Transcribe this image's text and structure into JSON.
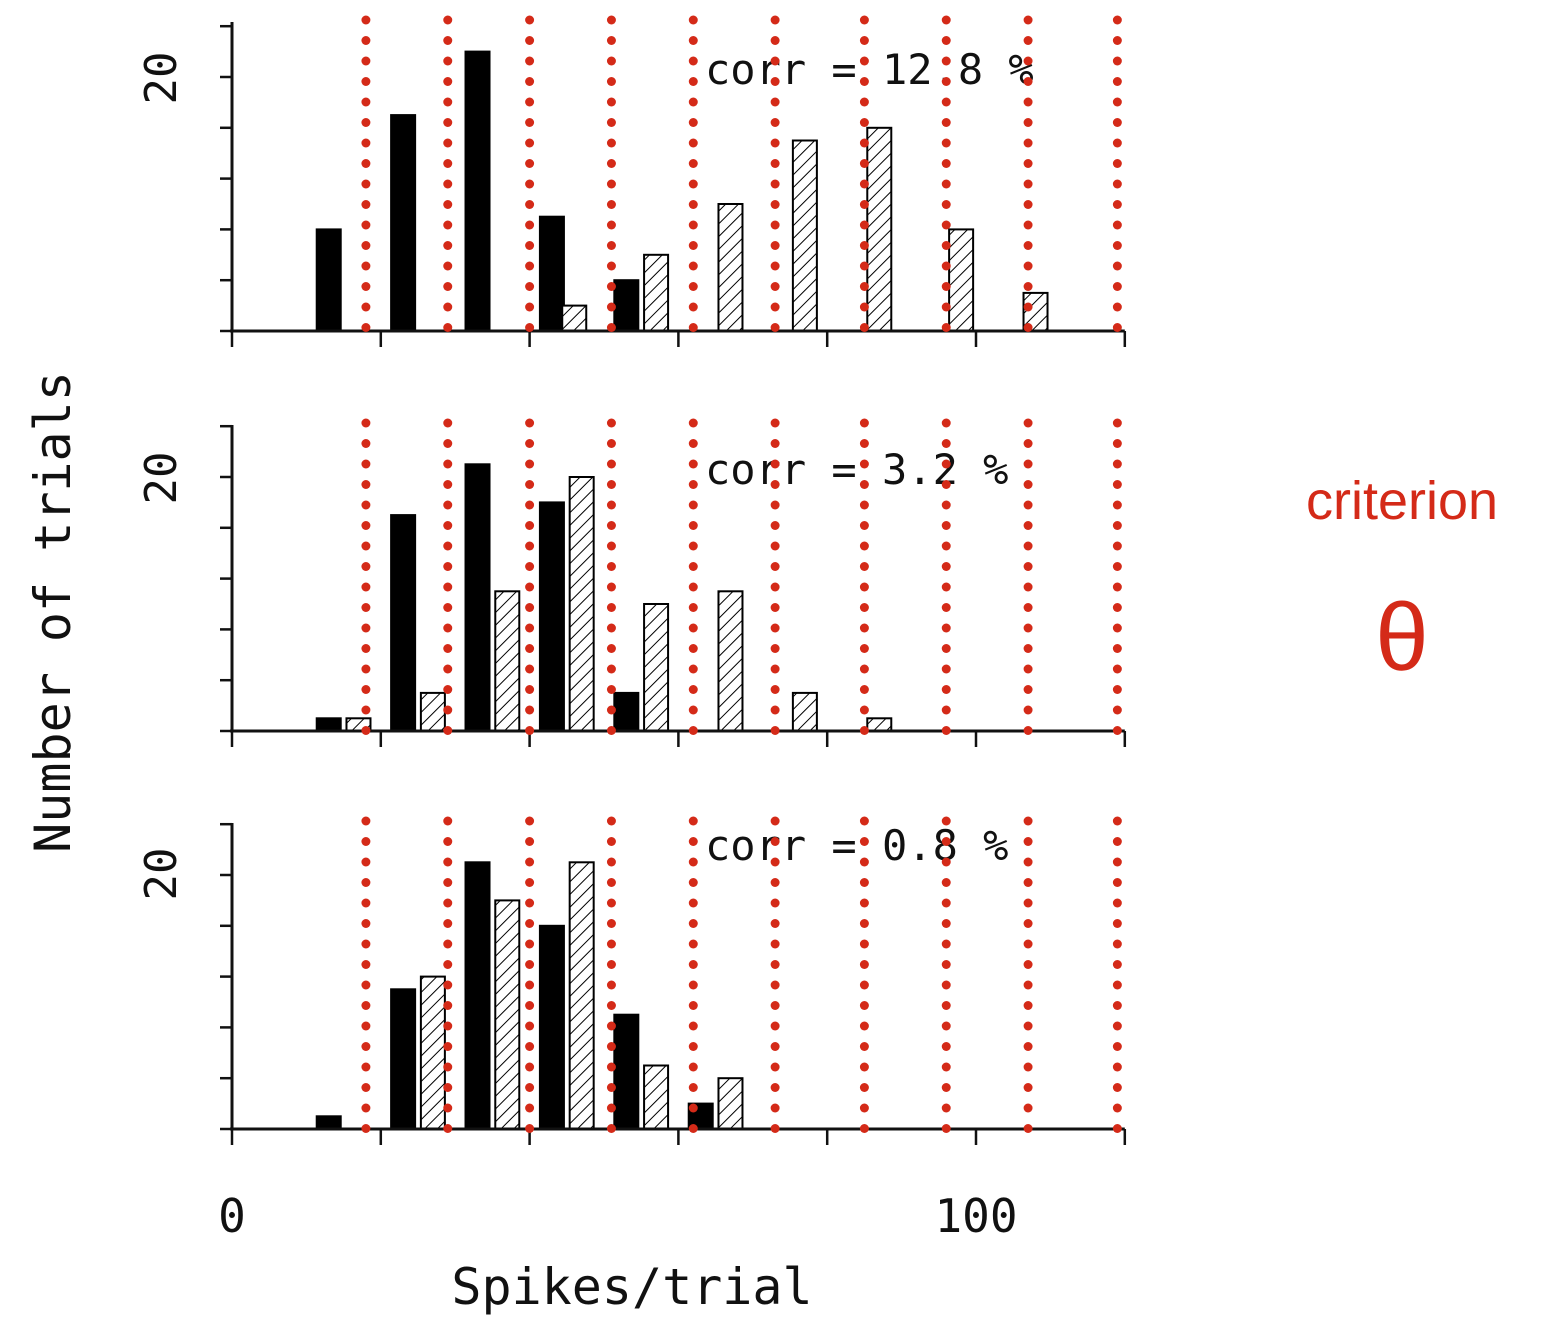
{
  "colors": {
    "criterion": "#d42a18",
    "ink": "#111111"
  },
  "criterion": {
    "label": "criterion",
    "symbol": "θ"
  },
  "chart_data": {
    "type": "bar",
    "xlabel": "Spikes/trial",
    "ylabel": "Number of trials",
    "x_ticks": [
      "0",
      "100"
    ],
    "y_tick_label": "20",
    "xlim": [
      0,
      120
    ],
    "ylim": [
      0,
      24
    ],
    "bin_width": 10,
    "criterion_positions": [
      18,
      29,
      40,
      51,
      62,
      73,
      85,
      96,
      107,
      119
    ],
    "series_styles": {
      "solid": "filled black",
      "hatched": "diagonal hatch"
    },
    "panels": [
      {
        "annotation": "corr = 12.8 %",
        "solid": [
          [
            13,
            8
          ],
          [
            23,
            17
          ],
          [
            33,
            22
          ],
          [
            43,
            9
          ],
          [
            53,
            4
          ]
        ],
        "hatched": [
          [
            46,
            2
          ],
          [
            57,
            6
          ],
          [
            67,
            10
          ],
          [
            77,
            15
          ],
          [
            87,
            16
          ],
          [
            98,
            8
          ],
          [
            108,
            3
          ]
        ]
      },
      {
        "annotation": "corr = 3.2 %",
        "solid": [
          [
            13,
            1
          ],
          [
            23,
            17
          ],
          [
            33,
            21
          ],
          [
            43,
            18
          ],
          [
            53,
            3
          ]
        ],
        "hatched": [
          [
            17,
            1
          ],
          [
            27,
            3
          ],
          [
            37,
            11
          ],
          [
            47,
            20
          ],
          [
            57,
            10
          ],
          [
            67,
            11
          ],
          [
            77,
            3
          ],
          [
            87,
            1
          ]
        ]
      },
      {
        "annotation": "corr = 0.8 %",
        "solid": [
          [
            13,
            1
          ],
          [
            23,
            11
          ],
          [
            33,
            21
          ],
          [
            43,
            16
          ],
          [
            53,
            9
          ],
          [
            63,
            2
          ]
        ],
        "hatched": [
          [
            27,
            12
          ],
          [
            37,
            18
          ],
          [
            47,
            21
          ],
          [
            57,
            5
          ],
          [
            67,
            4
          ]
        ]
      }
    ]
  }
}
